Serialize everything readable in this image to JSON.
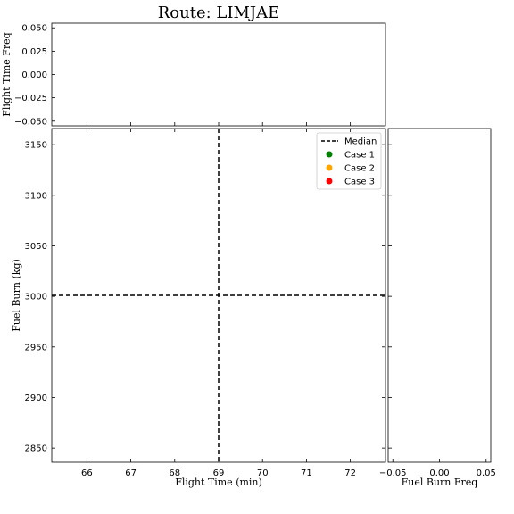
{
  "chart_data": {
    "type": "scatter",
    "title": "Route: LIMJAE",
    "main": {
      "xlabel": "Flight Time (min)",
      "ylabel": "Fuel Burn (kg)",
      "xlim": [
        65.2,
        72.8
      ],
      "ylim": [
        2836,
        3166
      ],
      "xticks": [
        66,
        67,
        68,
        69,
        70,
        71,
        72
      ],
      "yticks": [
        2850,
        2900,
        2950,
        3000,
        3050,
        3100,
        3150
      ],
      "median": {
        "x": 69.0,
        "y": 3001
      },
      "legend_position": "upper right"
    },
    "top_hist": {
      "ylabel": "Flight Time Freq",
      "ylim": [
        -0.055,
        0.055
      ],
      "yticks": [
        "0.050",
        "0.025",
        "0.000",
        "−0.025",
        "−0.050"
      ],
      "ytick_values": [
        0.05,
        0.025,
        0.0,
        -0.025,
        -0.05
      ]
    },
    "right_hist": {
      "xlabel": "Fuel Burn Freq",
      "xlim": [
        -0.055,
        0.055
      ],
      "xticks": [
        "−0.05",
        "0.00",
        "0.05"
      ],
      "xtick_values": [
        -0.05,
        0.0,
        0.05
      ]
    },
    "series": [
      {
        "name": "Median",
        "kind": "line",
        "style": "dashed",
        "color": "#000000"
      },
      {
        "name": "Case 1",
        "kind": "scatter",
        "color": "#008000",
        "points": []
      },
      {
        "name": "Case 2",
        "kind": "scatter",
        "color": "#FFA500",
        "points": []
      },
      {
        "name": "Case 3",
        "kind": "scatter",
        "color": "#FF0000",
        "points": []
      }
    ]
  }
}
